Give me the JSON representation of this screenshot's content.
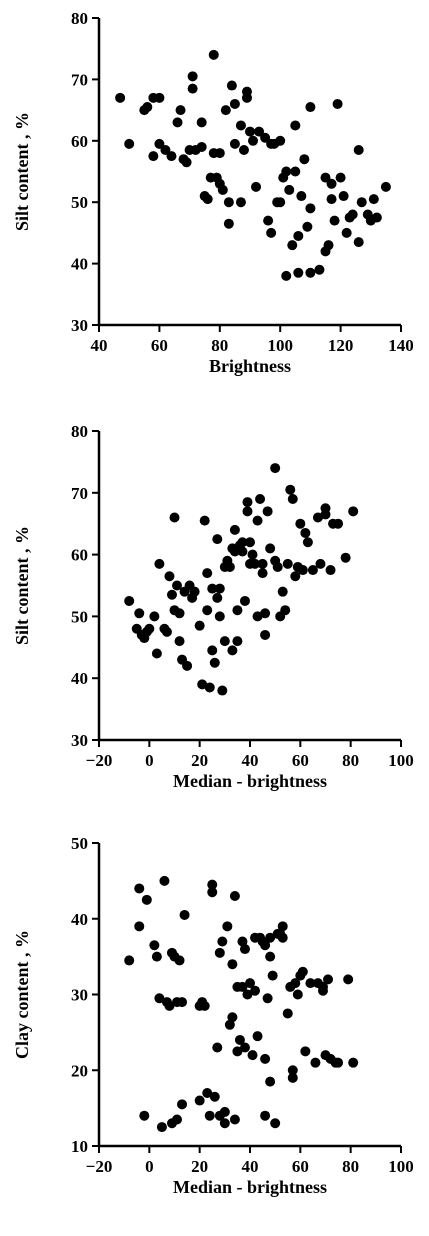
{
  "chart_data": [
    {
      "type": "scatter",
      "xlabel": "Brightness",
      "ylabel": "Silt content , %",
      "xlim": [
        40,
        140
      ],
      "ylim": [
        30,
        80
      ],
      "xticks": [
        "40",
        "60",
        "80",
        "100",
        "120",
        "140"
      ],
      "yticks": [
        "30",
        "40",
        "50",
        "60",
        "70",
        "80"
      ],
      "grid": false,
      "points": [
        [
          47,
          67
        ],
        [
          50,
          59.5
        ],
        [
          55,
          65
        ],
        [
          56,
          65.5
        ],
        [
          58,
          57.5
        ],
        [
          58,
          67
        ],
        [
          60,
          59.5
        ],
        [
          60,
          67
        ],
        [
          62,
          58.5
        ],
        [
          64,
          57.5
        ],
        [
          66,
          63
        ],
        [
          67,
          65
        ],
        [
          68,
          57
        ],
        [
          69,
          56.5
        ],
        [
          70,
          58.5
        ],
        [
          71,
          68.5
        ],
        [
          71,
          70.5
        ],
        [
          72,
          58.5
        ],
        [
          74,
          59
        ],
        [
          74,
          63
        ],
        [
          75,
          51
        ],
        [
          76,
          50.5
        ],
        [
          77,
          54
        ],
        [
          78,
          58
        ],
        [
          78,
          74
        ],
        [
          79,
          54
        ],
        [
          80,
          58
        ],
        [
          80,
          53
        ],
        [
          81,
          52
        ],
        [
          82,
          65
        ],
        [
          83,
          46.5
        ],
        [
          83,
          50
        ],
        [
          84,
          69
        ],
        [
          85,
          66
        ],
        [
          85,
          59.5
        ],
        [
          87,
          62.5
        ],
        [
          87,
          50
        ],
        [
          88,
          58.5
        ],
        [
          89,
          68
        ],
        [
          89,
          67
        ],
        [
          90,
          61.5
        ],
        [
          91,
          60
        ],
        [
          92,
          52.5
        ],
        [
          93,
          61.5
        ],
        [
          95,
          60.5
        ],
        [
          96,
          47
        ],
        [
          97,
          45
        ],
        [
          97,
          59.5
        ],
        [
          98,
          59.5
        ],
        [
          99,
          50
        ],
        [
          100,
          60
        ],
        [
          100,
          50
        ],
        [
          101,
          54
        ],
        [
          102,
          55
        ],
        [
          102,
          38
        ],
        [
          103,
          52
        ],
        [
          104,
          43
        ],
        [
          105,
          62.5
        ],
        [
          105,
          55
        ],
        [
          106,
          44.5
        ],
        [
          106,
          38.5
        ],
        [
          107,
          51
        ],
        [
          108,
          57
        ],
        [
          109,
          46
        ],
        [
          110,
          38.5
        ],
        [
          110,
          49
        ],
        [
          110,
          65.5
        ],
        [
          113,
          39
        ],
        [
          115,
          42
        ],
        [
          115,
          54
        ],
        [
          116,
          43
        ],
        [
          117,
          53
        ],
        [
          117,
          50.5
        ],
        [
          118,
          47
        ],
        [
          119,
          66
        ],
        [
          120,
          54
        ],
        [
          121,
          51
        ],
        [
          122,
          45
        ],
        [
          123,
          47.5
        ],
        [
          124,
          48
        ],
        [
          126,
          58.5
        ],
        [
          126,
          43.5
        ],
        [
          127,
          50
        ],
        [
          129,
          48
        ],
        [
          130,
          47
        ],
        [
          131,
          50.5
        ],
        [
          132,
          47.5
        ],
        [
          135,
          52.5
        ]
      ]
    },
    {
      "type": "scatter",
      "xlabel": "Median - brightness",
      "ylabel": "Silt content , %",
      "xlim": [
        -20,
        100
      ],
      "ylim": [
        30,
        80
      ],
      "xticks": [
        "−20",
        "0",
        "20",
        "40",
        "60",
        "80",
        "100"
      ],
      "yticks": [
        "30",
        "40",
        "50",
        "60",
        "70",
        "80"
      ],
      "grid": false,
      "points": [
        [
          -8,
          52.5
        ],
        [
          -5,
          48
        ],
        [
          -4,
          50.5
        ],
        [
          -3,
          47
        ],
        [
          -2,
          46.5
        ],
        [
          -1,
          47.5
        ],
        [
          0,
          48
        ],
        [
          2,
          50
        ],
        [
          3,
          44
        ],
        [
          4,
          58.5
        ],
        [
          6,
          48
        ],
        [
          7,
          47.5
        ],
        [
          8,
          56.5
        ],
        [
          9,
          53.5
        ],
        [
          10,
          66
        ],
        [
          10,
          51
        ],
        [
          11,
          55
        ],
        [
          12,
          46
        ],
        [
          12,
          50.5
        ],
        [
          13,
          43
        ],
        [
          14,
          54
        ],
        [
          15,
          42
        ],
        [
          16,
          55
        ],
        [
          17,
          53
        ],
        [
          18,
          54
        ],
        [
          20,
          48.5
        ],
        [
          21,
          39
        ],
        [
          22,
          65.5
        ],
        [
          23,
          57
        ],
        [
          23,
          51
        ],
        [
          24,
          38.5
        ],
        [
          25,
          44.5
        ],
        [
          25,
          54.5
        ],
        [
          26,
          42.5
        ],
        [
          27,
          62.5
        ],
        [
          27,
          53
        ],
        [
          28,
          50
        ],
        [
          28,
          54.5
        ],
        [
          29,
          38
        ],
        [
          30,
          46
        ],
        [
          30,
          58
        ],
        [
          31,
          59
        ],
        [
          32,
          58
        ],
        [
          33,
          44.5
        ],
        [
          33,
          61
        ],
        [
          34,
          60.5
        ],
        [
          34,
          64
        ],
        [
          35,
          46
        ],
        [
          35,
          51
        ],
        [
          36,
          61.5
        ],
        [
          37,
          62
        ],
        [
          37,
          60.5
        ],
        [
          38,
          52.5
        ],
        [
          39,
          67
        ],
        [
          39,
          68.5
        ],
        [
          40,
          62
        ],
        [
          40,
          58.5
        ],
        [
          41,
          60
        ],
        [
          42,
          58.5
        ],
        [
          43,
          65.5
        ],
        [
          43,
          50
        ],
        [
          44,
          69
        ],
        [
          45,
          57
        ],
        [
          45,
          58.5
        ],
        [
          46,
          50.5
        ],
        [
          46,
          47
        ],
        [
          47,
          67
        ],
        [
          48,
          61
        ],
        [
          50,
          74
        ],
        [
          50,
          59
        ],
        [
          51,
          58
        ],
        [
          52,
          50
        ],
        [
          53,
          54
        ],
        [
          54,
          51
        ],
        [
          55,
          58.5
        ],
        [
          56,
          70.5
        ],
        [
          57,
          69
        ],
        [
          58,
          56.5
        ],
        [
          59,
          58
        ],
        [
          60,
          65
        ],
        [
          61,
          57.5
        ],
        [
          62,
          63.5
        ],
        [
          63,
          62
        ],
        [
          65,
          57.5
        ],
        [
          67,
          66
        ],
        [
          68,
          58.5
        ],
        [
          70,
          67.5
        ],
        [
          70,
          66.5
        ],
        [
          72,
          57.5
        ],
        [
          73,
          65
        ],
        [
          75,
          65
        ],
        [
          78,
          59.5
        ],
        [
          81,
          67
        ]
      ]
    },
    {
      "type": "scatter",
      "xlabel": "Median - brightness",
      "ylabel": "Clay content , %",
      "xlim": [
        -20,
        100
      ],
      "ylim": [
        10,
        50
      ],
      "xticks": [
        "−20",
        "0",
        "20",
        "40",
        "60",
        "80",
        "100"
      ],
      "yticks": [
        "10",
        "20",
        "30",
        "40",
        "50"
      ],
      "grid": false,
      "points": [
        [
          -8,
          34.5
        ],
        [
          -4,
          44
        ],
        [
          -4,
          39
        ],
        [
          -2,
          14
        ],
        [
          -1,
          42.5
        ],
        [
          2,
          36.5
        ],
        [
          3,
          35
        ],
        [
          4,
          29.5
        ],
        [
          5,
          12.5
        ],
        [
          6,
          45
        ],
        [
          7,
          29
        ],
        [
          8,
          28.5
        ],
        [
          9,
          35.5
        ],
        [
          9,
          13
        ],
        [
          10,
          35
        ],
        [
          11,
          29
        ],
        [
          11,
          13.5
        ],
        [
          12,
          34.5
        ],
        [
          13,
          29
        ],
        [
          13,
          15.5
        ],
        [
          14,
          40.5
        ],
        [
          20,
          28.5
        ],
        [
          20,
          16
        ],
        [
          21,
          29
        ],
        [
          22,
          28.5
        ],
        [
          23,
          17
        ],
        [
          24,
          14
        ],
        [
          25,
          44.5
        ],
        [
          25,
          43.5
        ],
        [
          26,
          16.5
        ],
        [
          27,
          23
        ],
        [
          28,
          35.5
        ],
        [
          28,
          14
        ],
        [
          29,
          37
        ],
        [
          30,
          13
        ],
        [
          30,
          14.5
        ],
        [
          31,
          39
        ],
        [
          32,
          26
        ],
        [
          33,
          34
        ],
        [
          33,
          27
        ],
        [
          34,
          43
        ],
        [
          34,
          13.5
        ],
        [
          35,
          31
        ],
        [
          35,
          22.5
        ],
        [
          36,
          24
        ],
        [
          37,
          31
        ],
        [
          37,
          37
        ],
        [
          38,
          23
        ],
        [
          38,
          36
        ],
        [
          39,
          30
        ],
        [
          40,
          31.5
        ],
        [
          41,
          22
        ],
        [
          42,
          30.5
        ],
        [
          42,
          37.5
        ],
        [
          43,
          24.5
        ],
        [
          44,
          37.5
        ],
        [
          45,
          37
        ],
        [
          46,
          36.5
        ],
        [
          46,
          21.5
        ],
        [
          46,
          14
        ],
        [
          47,
          29.5
        ],
        [
          48,
          35
        ],
        [
          48,
          37.5
        ],
        [
          48,
          18.5
        ],
        [
          49,
          32.5
        ],
        [
          50,
          13
        ],
        [
          51,
          38
        ],
        [
          52,
          38
        ],
        [
          53,
          39
        ],
        [
          53,
          37.5
        ],
        [
          55,
          27.5
        ],
        [
          56,
          31
        ],
        [
          57,
          20
        ],
        [
          57,
          19
        ],
        [
          58,
          31.5
        ],
        [
          59,
          30
        ],
        [
          60,
          32.5
        ],
        [
          61,
          33
        ],
        [
          62,
          22.5
        ],
        [
          64,
          31.5
        ],
        [
          66,
          21
        ],
        [
          67,
          31.5
        ],
        [
          69,
          31
        ],
        [
          69,
          30.5
        ],
        [
          70,
          22
        ],
        [
          71,
          32
        ],
        [
          72,
          21.5
        ],
        [
          74,
          21
        ],
        [
          75,
          21
        ],
        [
          79,
          32
        ],
        [
          81,
          21
        ]
      ]
    }
  ]
}
